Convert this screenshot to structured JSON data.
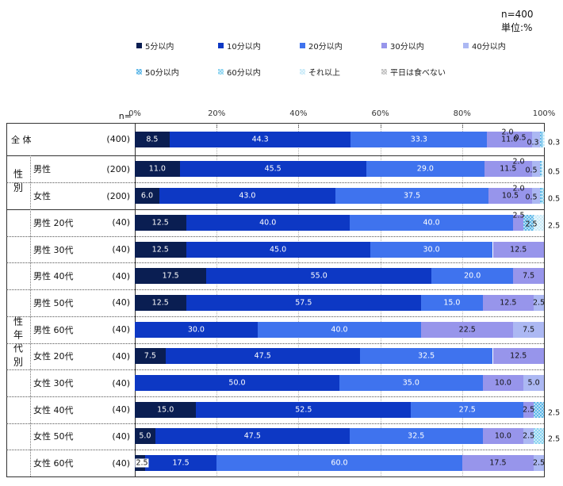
{
  "meta": {
    "sample_size": "n=400",
    "unit_label": "単位:%"
  },
  "axis": {
    "n_header": "n=",
    "tick_labels": [
      "0%",
      "20%",
      "40%",
      "60%",
      "80%",
      "100%"
    ]
  },
  "legend": {
    "items": [
      {
        "label": "5分以内",
        "color": "#0A1E52",
        "pattern": false
      },
      {
        "label": "10分以内",
        "color": "#0D38C4",
        "pattern": false
      },
      {
        "label": "20分以内",
        "color": "#3F73EE",
        "pattern": false
      },
      {
        "label": "30分以内",
        "color": "#9795EB",
        "pattern": false
      },
      {
        "label": "40分以内",
        "color": "#ACB8F3",
        "pattern": false
      },
      {
        "label": "50分以内",
        "color": "#5FB8E8",
        "pattern": true
      },
      {
        "label": "60分以内",
        "color": "#8AD3F0",
        "pattern": true
      },
      {
        "label": "それ以上",
        "color": "#C9EAF8",
        "pattern": true
      },
      {
        "label": "平日は食べない",
        "color": "#C0C0C0",
        "pattern": true
      }
    ]
  },
  "chart_data": {
    "type": "bar",
    "stacked": true,
    "orientation": "horizontal",
    "unit": "%",
    "xlim": [
      0,
      100
    ],
    "x_ticks": [
      0,
      20,
      40,
      60,
      80,
      100
    ],
    "grid": true,
    "legend_position": "top",
    "categories": [
      "5分以内",
      "10分以内",
      "20分以内",
      "30分以内",
      "40分以内",
      "50分以内",
      "60分以内",
      "それ以上",
      "平日は食べない"
    ],
    "colors": [
      "#0A1E52",
      "#0D38C4",
      "#3F73EE",
      "#9795EB",
      "#ACB8F3",
      "#5FB8E8",
      "#8AD3F0",
      "#C9EAF8",
      "#C0C0C0"
    ],
    "rows": [
      {
        "section": "",
        "label": "全 体",
        "n": "(400)",
        "values": [
          8.5,
          44.3,
          33.3,
          11.0,
          2.0,
          0.5,
          0.3,
          0.3,
          0
        ]
      },
      {
        "section": "性別",
        "label": "男性",
        "n": "(200)",
        "values": [
          11.0,
          45.5,
          29.0,
          11.5,
          2.0,
          0.5,
          0,
          0.5,
          0
        ]
      },
      {
        "section": "性別",
        "label": "女性",
        "n": "(200)",
        "values": [
          6.0,
          43.0,
          37.5,
          10.5,
          2.0,
          0.5,
          0.5,
          0,
          0
        ]
      },
      {
        "section": "性年代別",
        "label": "男性 20代",
        "n": "(40)",
        "values": [
          12.5,
          40.0,
          40.0,
          2.5,
          0,
          2.5,
          0,
          2.5,
          0
        ]
      },
      {
        "section": "性年代別",
        "label": "男性 30代",
        "n": "(40)",
        "values": [
          12.5,
          45.0,
          30.0,
          12.5,
          0,
          0,
          0,
          0,
          0
        ]
      },
      {
        "section": "性年代別",
        "label": "男性 40代",
        "n": "(40)",
        "values": [
          17.5,
          55.0,
          20.0,
          7.5,
          0,
          0,
          0,
          0,
          0
        ]
      },
      {
        "section": "性年代別",
        "label": "男性 50代",
        "n": "(40)",
        "values": [
          12.5,
          57.5,
          15.0,
          12.5,
          2.5,
          0,
          0,
          0,
          0
        ]
      },
      {
        "section": "性年代別",
        "label": "男性 60代",
        "n": "(40)",
        "values": [
          0,
          30.0,
          40.0,
          22.5,
          7.5,
          0,
          0,
          0,
          0
        ]
      },
      {
        "section": "性年代別",
        "label": "女性 20代",
        "n": "(40)",
        "values": [
          7.5,
          47.5,
          32.5,
          12.5,
          0,
          0,
          0,
          0,
          0
        ]
      },
      {
        "section": "性年代別",
        "label": "女性 30代",
        "n": "(40)",
        "values": [
          0,
          50.0,
          35.0,
          10.0,
          5.0,
          0,
          0,
          0,
          0
        ]
      },
      {
        "section": "性年代別",
        "label": "女性 40代",
        "n": "(40)",
        "values": [
          15.0,
          52.5,
          27.5,
          2.5,
          0,
          2.5,
          0,
          0,
          0
        ]
      },
      {
        "section": "性年代別",
        "label": "女性 50代",
        "n": "(40)",
        "values": [
          5.0,
          47.5,
          32.5,
          10.0,
          2.5,
          0,
          2.5,
          0,
          0
        ]
      },
      {
        "section": "性年代別",
        "label": "女性 60代",
        "n": "(40)",
        "values": [
          2.5,
          17.5,
          60.0,
          17.5,
          2.5,
          0,
          0,
          0,
          0
        ]
      }
    ],
    "sections": [
      {
        "title": "性別",
        "start": 1,
        "count": 2
      },
      {
        "title": "性年代別",
        "start": 3,
        "count": 10
      }
    ]
  }
}
